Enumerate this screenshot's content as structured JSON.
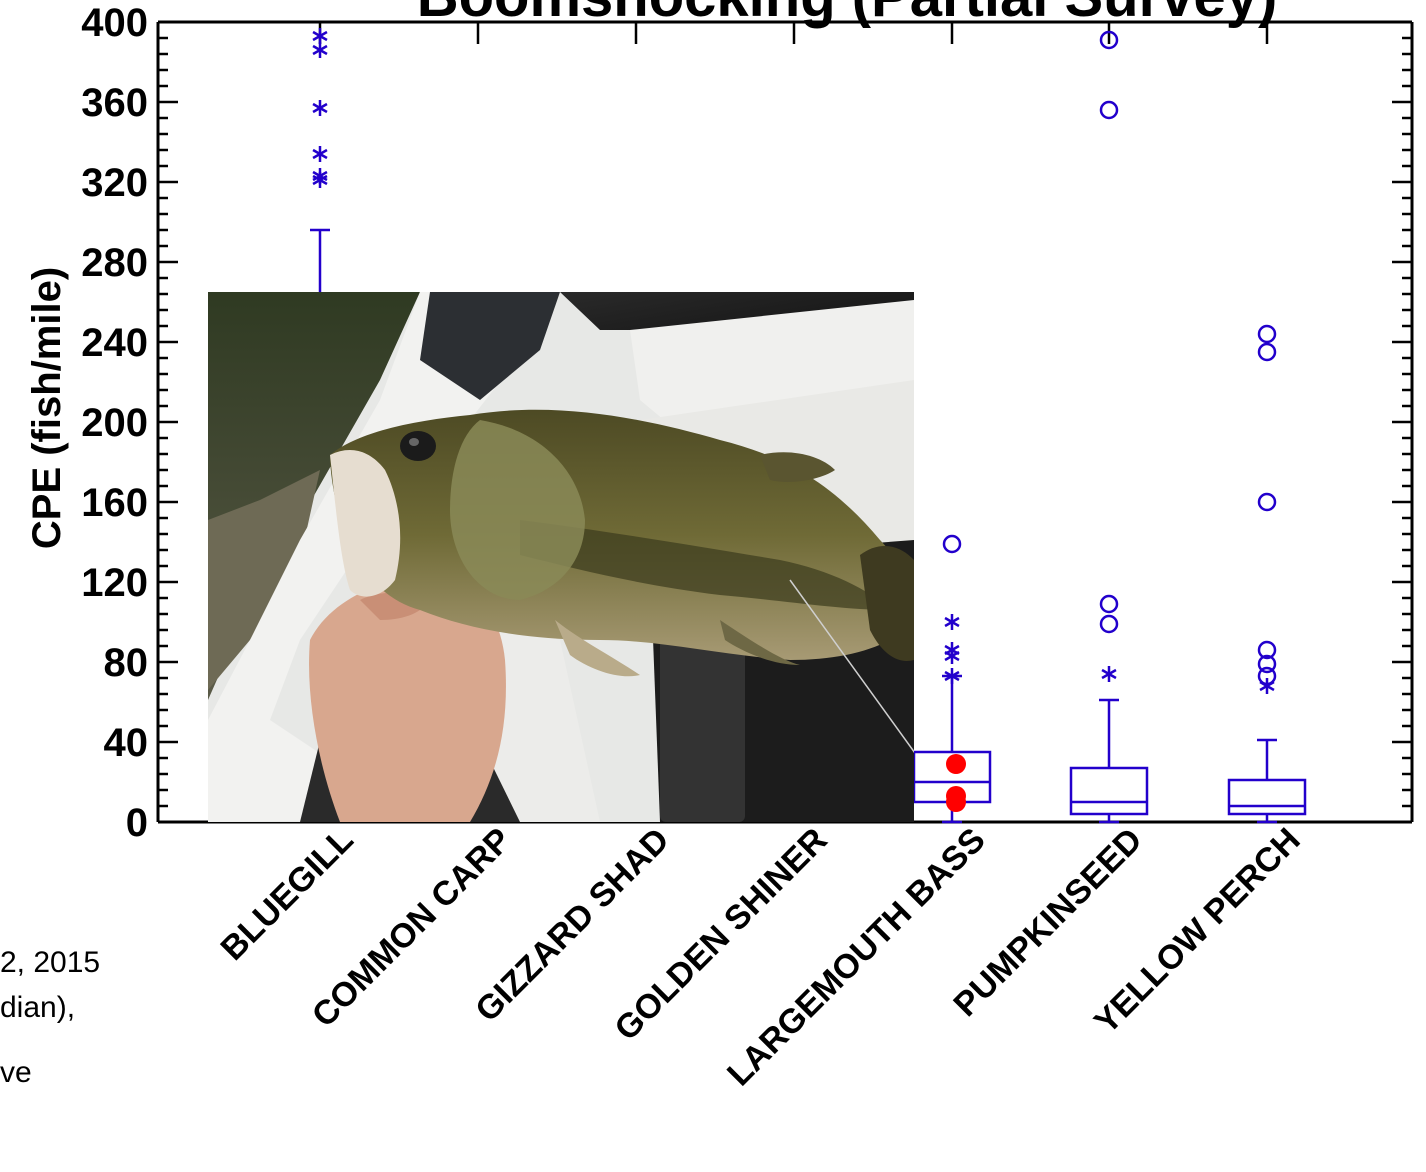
{
  "chart_data": {
    "type": "box",
    "title": "Boomshocking (Partial Survey)",
    "ylabel": "CPE (fish/mile)",
    "ylim": [
      0,
      400
    ],
    "yticks": [
      0,
      40,
      80,
      120,
      160,
      200,
      240,
      280,
      320,
      360,
      400
    ],
    "grid": false,
    "categories": [
      "BLUEGILL",
      "COMMON CARP",
      "GIZZARD SHAD",
      "GOLDEN SHINER",
      "LARGEMOUTH BASS",
      "PUMPKINSEED",
      "YELLOW PERCH"
    ],
    "colors": {
      "box": "#2200cc",
      "highlight": "#ff0000",
      "axis": "#000000"
    },
    "boxes": [
      {
        "category": "BLUEGILL",
        "whisker_high": 296,
        "stars": [
          321,
          323,
          334,
          357,
          386,
          393
        ]
      },
      {
        "category": "LARGEMOUTH BASS",
        "whisker_low": 0,
        "q1": 10,
        "median": 20,
        "q3": 35,
        "whisker_high": 73,
        "stars": [
          73,
          83,
          86,
          100
        ],
        "circles": [
          139
        ],
        "highlight_points": [
          10,
          13,
          29
        ]
      },
      {
        "category": "PUMPKINSEED",
        "whisker_low": 0,
        "q1": 4,
        "median": 10,
        "q3": 27,
        "whisker_high": 61,
        "stars": [
          74
        ],
        "circles": [
          99,
          109,
          356,
          391
        ]
      },
      {
        "category": "YELLOW PERCH",
        "whisker_low": 0,
        "q1": 4,
        "median": 8,
        "q3": 21,
        "whisker_high": 41,
        "stars": [
          68
        ],
        "circles": [
          73,
          79,
          86,
          160,
          235,
          244
        ]
      }
    ]
  },
  "side_note": {
    "lines": [
      "2, 2015",
      "dian),",
      "ve"
    ]
  },
  "photo": {
    "subject": "largemouth-bass-photo"
  }
}
